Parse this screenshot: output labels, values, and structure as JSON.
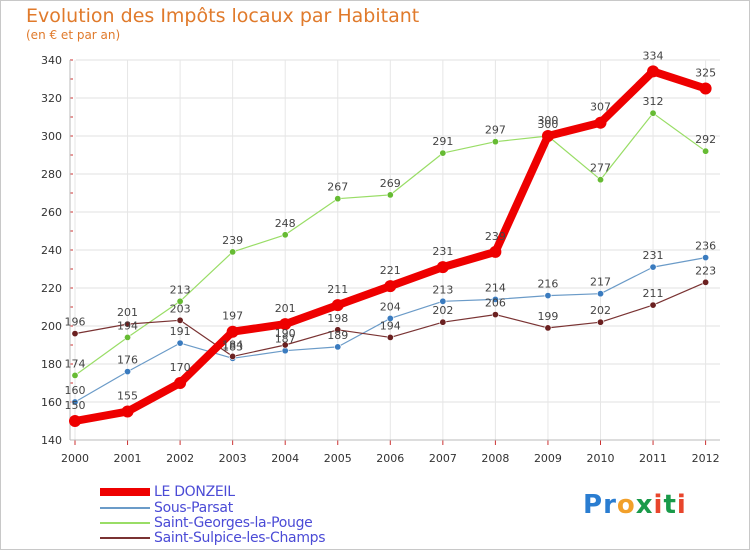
{
  "header": {
    "title": "Evolution des Impôts locaux par Habitant",
    "subtitle": "(en € et par an)"
  },
  "logo": {
    "text": "Proxiti",
    "letters": [
      {
        "ch": "P",
        "color": "#2a7dd1"
      },
      {
        "ch": "r",
        "color": "#2a7dd1"
      },
      {
        "ch": "o",
        "color": "#f2a02a"
      },
      {
        "ch": "x",
        "color": "#1a9a4a"
      },
      {
        "ch": "i",
        "color": "#e8452c"
      },
      {
        "ch": "t",
        "color": "#1a9a4a"
      },
      {
        "ch": "i",
        "color": "#e8452c"
      }
    ]
  },
  "chart_data": {
    "type": "line",
    "title": "Evolution des Impôts locaux par Habitant",
    "subtitle": "(en € et par an)",
    "x": [
      "2000",
      "2001",
      "2002",
      "2003",
      "2004",
      "2005",
      "2006",
      "2007",
      "2008",
      "2009",
      "2010",
      "2011",
      "2012"
    ],
    "ylim": [
      140,
      340
    ],
    "yticks": [
      140,
      160,
      180,
      200,
      220,
      240,
      260,
      280,
      300,
      320,
      340
    ],
    "grid": true,
    "legend_position": "bottom-left",
    "series": [
      {
        "name": "LE DONZEIL",
        "color": "#ee0000",
        "values": [
          150,
          155,
          170,
          197,
          201,
          211,
          221,
          231,
          239,
          300,
          307,
          334,
          325
        ],
        "width": 8
      },
      {
        "name": "Sous-Parsat",
        "color": "#6b9bc8",
        "marker": "#3a7bbf",
        "values": [
          160,
          176,
          191,
          183,
          187,
          189,
          204,
          213,
          214,
          216,
          217,
          231,
          236
        ],
        "width": 1.2
      },
      {
        "name": "Saint-Georges-la-Pouge",
        "color": "#99dd66",
        "marker": "#66bb33",
        "values": [
          174,
          194,
          213,
          239,
          248,
          267,
          269,
          291,
          297,
          300,
          277,
          312,
          292
        ],
        "width": 1.2
      },
      {
        "name": "Saint-Sulpice-les-Champs",
        "color": "#7a3333",
        "marker": "#6b2020",
        "values": [
          196,
          201,
          203,
          184,
          190,
          198,
          194,
          202,
          206,
          199,
          202,
          211,
          223
        ],
        "width": 1.2
      }
    ]
  }
}
